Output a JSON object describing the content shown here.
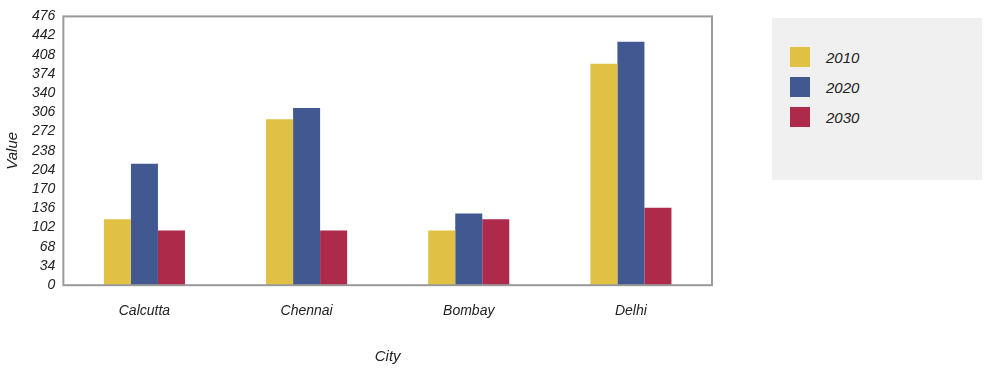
{
  "chart_data": {
    "type": "bar",
    "x_label": "City",
    "y_label": "Value",
    "categories": [
      "Calcutta",
      "Chennai",
      "Bombay",
      "Delhi"
    ],
    "series": [
      {
        "name": "2010",
        "color": "#e0c144",
        "values": [
          117,
          294,
          97,
          392
        ]
      },
      {
        "name": "2020",
        "color": "#425891",
        "values": [
          215,
          314,
          127,
          431
        ]
      },
      {
        "name": "2030",
        "color": "#ae2a4b",
        "values": [
          97,
          97,
          117,
          137
        ]
      }
    ],
    "ylim": [
      0,
      476
    ],
    "yticks": [
      0,
      34,
      68,
      102,
      136,
      170,
      204,
      238,
      272,
      306,
      340,
      374,
      408,
      442,
      476
    ],
    "grid": false,
    "legend": "right"
  }
}
